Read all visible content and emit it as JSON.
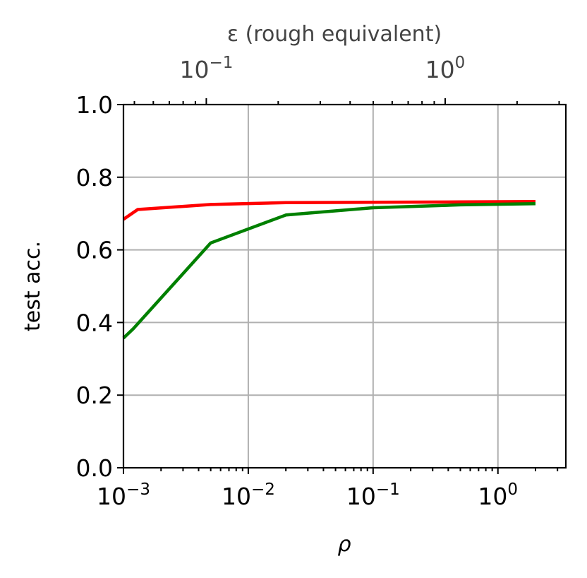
{
  "chart_data": {
    "type": "line",
    "xlabel": "ρ",
    "ylabel": "test acc.",
    "top_xlabel": "ε (rough equivalent)",
    "x_scale": "log",
    "xlim": [
      0.001,
      3.5
    ],
    "ylim": [
      0.0,
      1.0
    ],
    "grid": true,
    "x_ticks": [
      {
        "value": 0.001,
        "base": "10",
        "exp": "−3"
      },
      {
        "value": 0.01,
        "base": "10",
        "exp": "−2"
      },
      {
        "value": 0.1,
        "base": "10",
        "exp": "−1"
      },
      {
        "value": 1,
        "base": "10",
        "exp": "0"
      }
    ],
    "y_ticks": [
      {
        "value": 0.0,
        "label": "0.0"
      },
      {
        "value": 0.2,
        "label": "0.2"
      },
      {
        "value": 0.4,
        "label": "0.4"
      },
      {
        "value": 0.6,
        "label": "0.6"
      },
      {
        "value": 0.8,
        "label": "0.8"
      },
      {
        "value": 1.0,
        "label": "1.0"
      }
    ],
    "top_x_scale": "log",
    "top_xlim": [
      0.045,
      3.2
    ],
    "top_x_ticks": [
      {
        "value": 0.1,
        "base": "10",
        "exp": "−1"
      },
      {
        "value": 1,
        "base": "10",
        "exp": "0"
      }
    ],
    "series": [
      {
        "color": "#ff0000",
        "x": [
          0.001,
          0.0013,
          0.005,
          0.02,
          0.1,
          0.5,
          2.0
        ],
        "y": [
          0.684,
          0.711,
          0.725,
          0.73,
          0.731,
          0.732,
          0.733
        ]
      },
      {
        "color": "#008000",
        "x": [
          0.001,
          0.0012,
          0.005,
          0.02,
          0.1,
          0.5,
          2.0
        ],
        "y": [
          0.357,
          0.383,
          0.619,
          0.696,
          0.716,
          0.724,
          0.727
        ]
      }
    ]
  }
}
